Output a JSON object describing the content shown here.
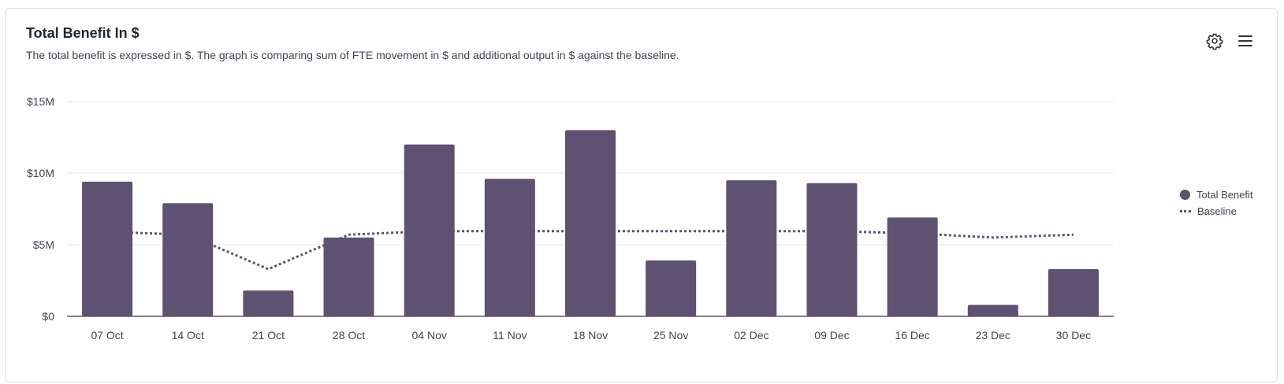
{
  "card": {
    "title": "Total Benefit In $",
    "subtitle": "The total benefit is expressed in $. The graph is comparing sum of FTE movement in $ and additional output in $ against the baseline."
  },
  "toolbar": {
    "settings_icon": "gear-icon",
    "menu_icon": "hamburger-menu-icon"
  },
  "colors": {
    "bar": "#5d5272",
    "baseline": "#5d5272",
    "grid": "#e6e8ec",
    "axis": "#5d5272"
  },
  "chart_data": {
    "type": "bar",
    "title": "Total Benefit In $",
    "categories": [
      "07 Oct",
      "14 Oct",
      "21 Oct",
      "28 Oct",
      "04 Nov",
      "11 Nov",
      "18 Nov",
      "25 Nov",
      "02 Dec",
      "09 Dec",
      "16 Dec",
      "23 Dec",
      "30 Dec"
    ],
    "series": [
      {
        "name": "Total Benefit",
        "kind": "bar",
        "values": [
          9.4,
          7.9,
          1.8,
          5.5,
          12.0,
          9.6,
          13.0,
          3.9,
          9.5,
          9.3,
          6.9,
          0.8,
          3.3
        ]
      },
      {
        "name": "Baseline",
        "kind": "line-dotted",
        "values": [
          5.9,
          5.7,
          3.3,
          5.7,
          5.95,
          5.95,
          5.95,
          5.95,
          5.95,
          5.95,
          5.8,
          5.5,
          5.7
        ]
      }
    ],
    "unit": "$M",
    "ylim": [
      0,
      15
    ],
    "yticks": [
      0,
      5,
      10,
      15
    ],
    "ytick_labels": [
      "$0",
      "$5M",
      "$10M",
      "$15M"
    ],
    "grid": true,
    "legend": {
      "position": "right",
      "items": [
        {
          "label": "Total Benefit",
          "marker": "circle"
        },
        {
          "label": "Baseline",
          "marker": "dotted-line"
        }
      ]
    }
  }
}
